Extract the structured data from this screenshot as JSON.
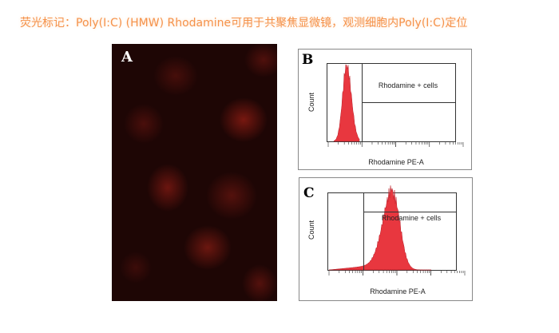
{
  "title": "荧光标记：Poly(I:C) (HMW) Rhodamine可用于共聚焦显微镜，观测细胞内Poly(I:C)定位",
  "panels": {
    "a": {
      "label": "A"
    },
    "b": {
      "label": "B",
      "gate_label": "Rhodamine + cells",
      "ylabel": "Count",
      "xlabel": "Rhodamine PE-A"
    },
    "c": {
      "label": "C",
      "gate_label": "Rhodamine + cells",
      "ylabel": "Count",
      "xlabel": "Rhodamine PE-A"
    }
  },
  "colors": {
    "title": "#f5924a",
    "histogram": "#e8373f",
    "fluorescence_bg": "#1e0605"
  }
}
